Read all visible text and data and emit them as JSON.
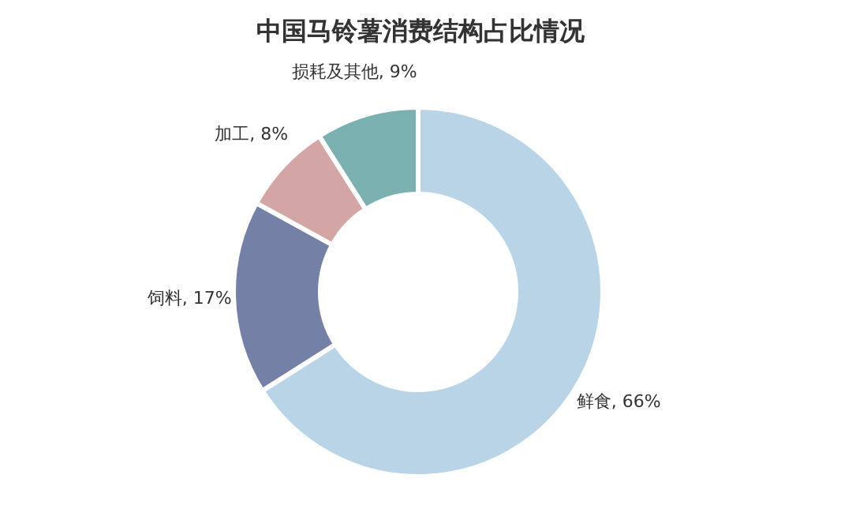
{
  "chart_data": {
    "type": "donut",
    "title": "中国马铃薯消费结构占比情况",
    "categories": [
      "鲜食",
      "饲料",
      "加工",
      "损耗及其他"
    ],
    "values": [
      66,
      17,
      8,
      9
    ],
    "value_labels": [
      "66%",
      "17%",
      "8%",
      "9%"
    ],
    "colors": [
      "#b8d4e6",
      "#7580a6",
      "#d4a5a5",
      "#7ab0b0"
    ]
  }
}
